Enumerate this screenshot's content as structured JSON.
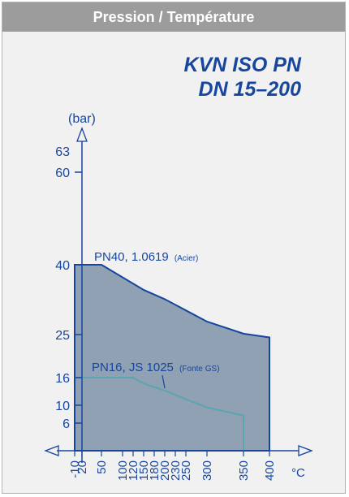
{
  "header": {
    "title": "Pression / Température"
  },
  "model": {
    "line1": "KVN ISO PN",
    "line2": "DN 15–200"
  },
  "colors": {
    "axis": "#17469e",
    "fill": "#8fa1b3",
    "outline": "#17469e",
    "pn16_line": "#5aa5b0",
    "header_bg": "#9c9c9c"
  },
  "chart_data": {
    "type": "area",
    "xlabel": "°C",
    "ylabel": "(bar)",
    "x_ticks": [
      -10,
      20,
      50,
      100,
      120,
      150,
      180,
      200,
      230,
      250,
      300,
      350,
      400
    ],
    "y_ticks": [
      6,
      10,
      16,
      25,
      40,
      60,
      63
    ],
    "series": [
      {
        "name": "PN40, 1.0619 (Acier)",
        "x": [
          -10,
          50,
          100,
          150,
          200,
          250,
          300,
          350,
          400
        ],
        "y": [
          40,
          40,
          37.3,
          34.6,
          32.6,
          30.2,
          27.8,
          25.2,
          24.4
        ]
      },
      {
        "name": "PN16, JS 1025 (Fonte GS)",
        "x": [
          -10,
          120,
          150,
          200,
          250,
          300,
          350
        ],
        "y": [
          16,
          16,
          14.7,
          13.2,
          11.3,
          9.5,
          7.7
        ]
      }
    ],
    "labels": [
      {
        "main": "PN40, 1.0619",
        "note": "(Acier)"
      },
      {
        "main": "PN16, JS 1025",
        "note": "(Fonte GS)"
      }
    ]
  }
}
